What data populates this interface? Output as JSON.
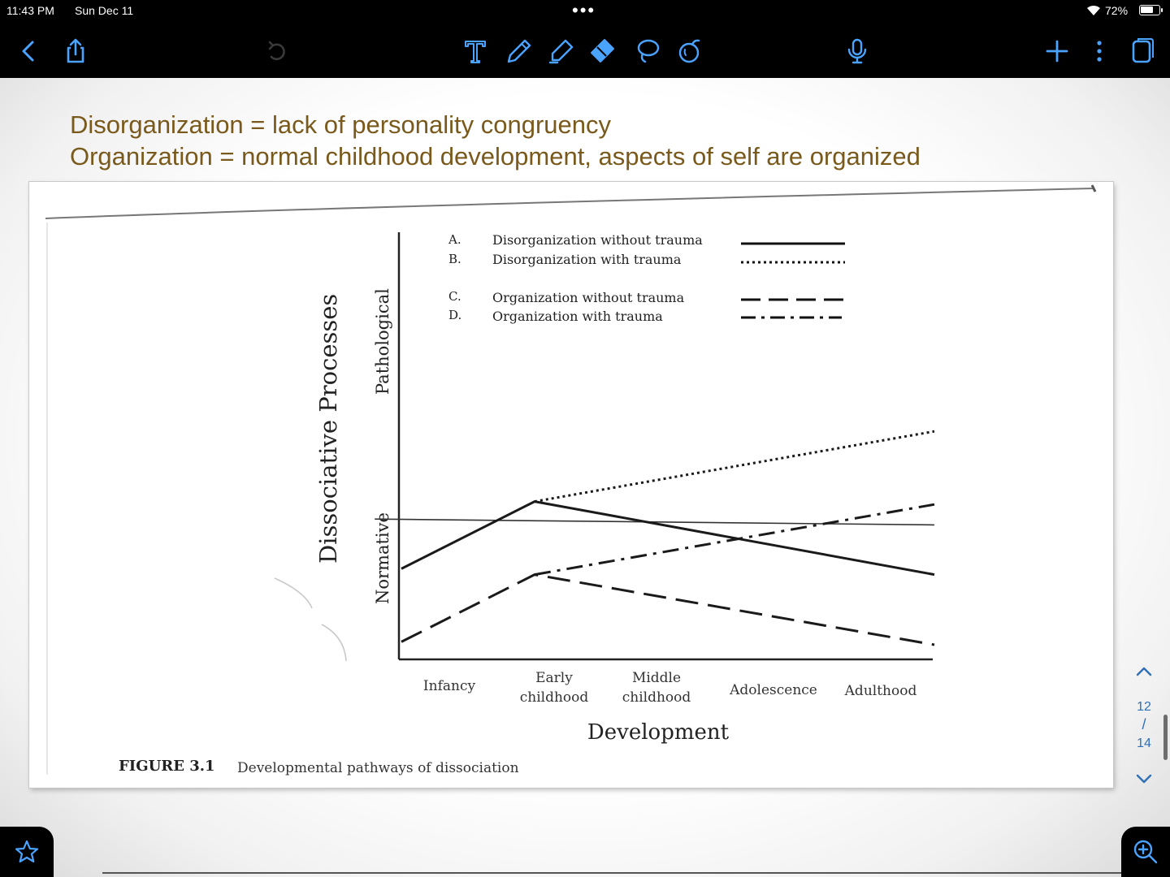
{
  "status_bar": {
    "time": "11:43 PM",
    "date": "Sun Dec 11",
    "more_dots": "•••",
    "battery": "72%",
    "battery_level": 0.72
  },
  "toolbar": {
    "left": [
      "back-icon",
      "share-icon",
      "undo-icon"
    ],
    "tools": [
      "text-tool-icon",
      "pen-icon",
      "highlighter-icon",
      "eraser-icon",
      "lasso-icon",
      "elements-icon"
    ],
    "right": [
      "microphone-icon",
      "add-page-icon",
      "more-options-icon",
      "page-view-icon"
    ],
    "accent_color": "#4aa3ff"
  },
  "annotation": {
    "line1": "Disorganization = lack of personality congruency",
    "line2": "Organization = normal childhood development, aspects of self are organized",
    "color": "#7a5a1c"
  },
  "figure": {
    "caption_number": "FIGURE 3.1",
    "caption_text": "Developmental pathways of dissociation",
    "legend": [
      {
        "letter": "A.",
        "label": "Disorganization without trauma",
        "style": "solid"
      },
      {
        "letter": "B.",
        "label": "Disorganization with trauma",
        "style": "dotted"
      },
      {
        "letter": "C.",
        "label": "Organization without trauma",
        "style": "dashed"
      },
      {
        "letter": "D.",
        "label": "Organization with trauma",
        "style": "dash-dot"
      }
    ],
    "y_title": "Dissociative Processes",
    "y_upper": "Pathological",
    "y_lower": "Normative",
    "x_title": "Development",
    "x_ticks": [
      {
        "line1": "Infancy",
        "line2": ""
      },
      {
        "line1": "Early",
        "line2": "childhood"
      },
      {
        "line1": "Middle",
        "line2": "childhood"
      },
      {
        "line1": "Adolescence",
        "line2": ""
      },
      {
        "line1": "Adulthood",
        "line2": ""
      }
    ]
  },
  "chart_data": {
    "type": "line",
    "x": [
      "Infancy",
      "Early childhood",
      "Middle childhood",
      "Adolescence",
      "Adulthood"
    ],
    "ylim": [
      0,
      10
    ],
    "threshold": {
      "y_start": 4.8,
      "y_end": 4.6
    },
    "series": [
      {
        "name": "Disorganization without trauma",
        "style": "solid",
        "points": [
          [
            0,
            3.1
          ],
          [
            1,
            5.4
          ],
          [
            4,
            2.9
          ]
        ]
      },
      {
        "name": "Disorganization with trauma",
        "style": "dotted",
        "points": [
          [
            1,
            5.4
          ],
          [
            4,
            7.8
          ]
        ]
      },
      {
        "name": "Organization without trauma",
        "style": "dashed",
        "points": [
          [
            0,
            0.6
          ],
          [
            1,
            2.9
          ],
          [
            4,
            0.5
          ]
        ]
      },
      {
        "name": "Organization with trauma",
        "style": "dash-dot",
        "points": [
          [
            1,
            2.9
          ],
          [
            4,
            5.3
          ]
        ]
      }
    ]
  },
  "pager": {
    "current": "12",
    "slash": "/",
    "total": "14"
  }
}
